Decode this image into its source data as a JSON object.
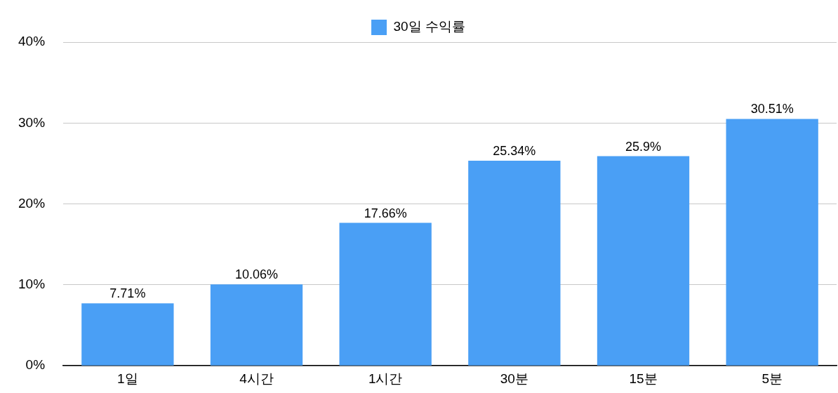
{
  "chart_data": {
    "type": "bar",
    "categories": [
      "1일",
      "4시간",
      "1시간",
      "30분",
      "15분",
      "5분"
    ],
    "series": [
      {
        "name": "30일 수익률",
        "color": "#4a9ff5",
        "values": [
          7.71,
          10.06,
          17.66,
          25.34,
          25.9,
          30.51
        ],
        "value_labels": [
          "7.71%",
          "10.06%",
          "17.66%",
          "25.34%",
          "25.9%",
          "30.51%"
        ]
      }
    ],
    "ylim": [
      0,
      40
    ],
    "yticks": [
      {
        "value": 0,
        "label": "0%"
      },
      {
        "value": 10,
        "label": "10%"
      },
      {
        "value": 20,
        "label": "20%"
      },
      {
        "value": 30,
        "label": "30%"
      },
      {
        "value": 40,
        "label": "40%"
      }
    ],
    "grid": "y",
    "legend": "top"
  }
}
